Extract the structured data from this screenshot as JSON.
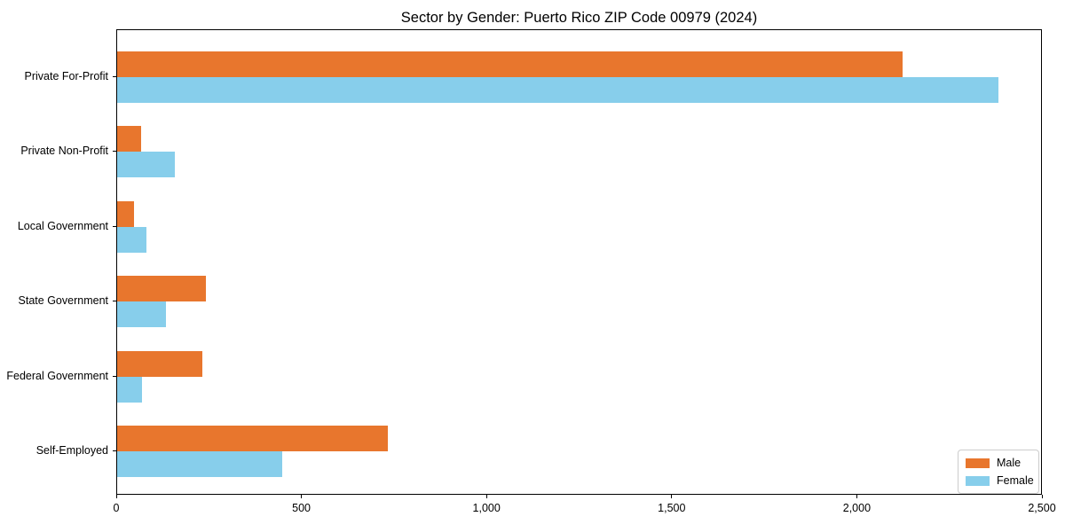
{
  "chart_data": {
    "type": "bar",
    "orientation": "horizontal",
    "title": "Sector by Gender: Puerto Rico ZIP Code 00979 (2024)",
    "categories": [
      "Private For-Profit",
      "Private Non-Profit",
      "Local Government",
      "State Government",
      "Federal Government",
      "Self-Employed"
    ],
    "series": [
      {
        "name": "Male",
        "color": "#E8762D",
        "values": [
          2120,
          65,
          45,
          240,
          230,
          730
        ]
      },
      {
        "name": "Female",
        "color": "#87CEEB",
        "values": [
          2380,
          155,
          78,
          132,
          68,
          445
        ]
      }
    ],
    "xlabel": "",
    "ylabel": "",
    "xlim": [
      0,
      2500
    ],
    "x_ticks": [
      0,
      500,
      1000,
      1500,
      2000,
      2500
    ],
    "x_tick_labels": [
      "0",
      "500",
      "1,000",
      "1,500",
      "2,000",
      "2,500"
    ],
    "grid": false,
    "legend": {
      "position": "lower right",
      "entries": [
        "Male",
        "Female"
      ]
    }
  }
}
